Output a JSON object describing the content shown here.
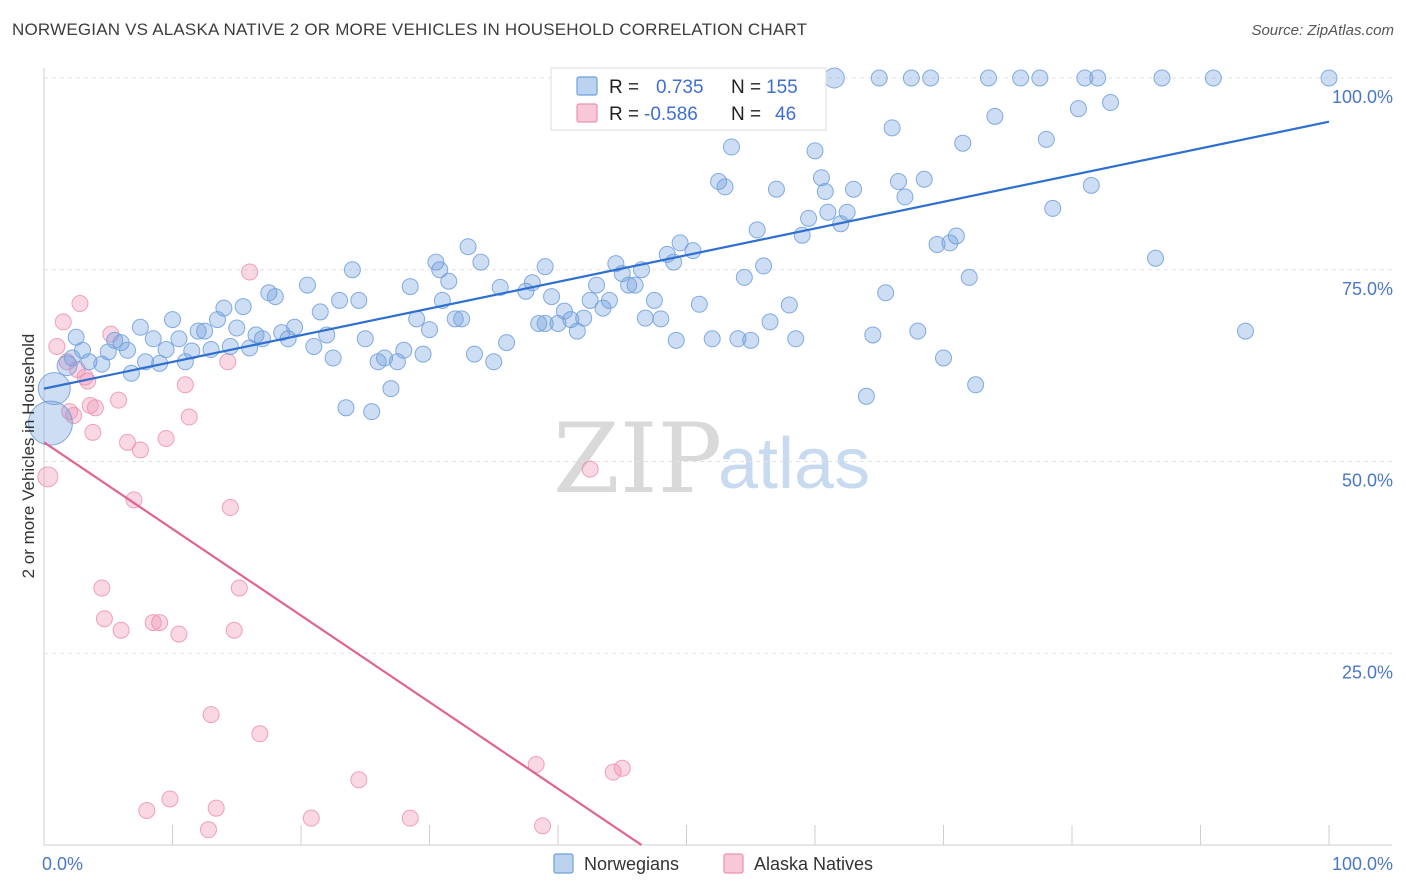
{
  "title": "NORWEGIAN VS ALASKA NATIVE 2 OR MORE VEHICLES IN HOUSEHOLD CORRELATION CHART",
  "source": "Source: ZipAtlas.com",
  "watermark": {
    "zip": "ZIP",
    "atlas": "atlas"
  },
  "colors": {
    "norwegians": "#6f9fdc",
    "alaska": "#ee90b2",
    "norwegians_line": "#2e6fcf",
    "alaska_line": "#e0648f",
    "tick": "#4a78c4"
  },
  "chart_data": {
    "type": "scatter",
    "title": "NORWEGIAN VS ALASKA NATIVE 2 OR MORE VEHICLES IN HOUSEHOLD CORRELATION CHART",
    "xlabel": "",
    "ylabel": "2 or more Vehicles in Household",
    "xlim": [
      0,
      100
    ],
    "ylim": [
      0,
      100
    ],
    "x_ticks": [
      "0.0%",
      "100.0%"
    ],
    "y_ticks": [
      {
        "value": 25,
        "label": "25.0%"
      },
      {
        "value": 50,
        "label": "50.0%"
      },
      {
        "value": 75,
        "label": "75.0%"
      },
      {
        "value": 100,
        "label": "100.0%"
      }
    ],
    "grid": true,
    "legend_placement": "top-center",
    "legend": [
      {
        "r_label": "R =",
        "r_value": "0.735",
        "n_label": "N =",
        "n_value": "155"
      },
      {
        "r_label": "R =",
        "r_value": "-0.586",
        "n_label": "N =",
        "n_value": "46"
      }
    ],
    "series": [
      {
        "name": "Norwegians",
        "trend": {
          "x": [
            0,
            100
          ],
          "y": [
            59.5,
            94.3
          ]
        },
        "points": [
          [
            0.5,
            55.0,
            22
          ],
          [
            0.8,
            59.5,
            16
          ],
          [
            1.8,
            62.5,
            10
          ],
          [
            2.2,
            63.5,
            8
          ],
          [
            2.5,
            66.2,
            8
          ],
          [
            3.0,
            64.5,
            8
          ],
          [
            3.5,
            63.0,
            8
          ],
          [
            4.5,
            62.7,
            8
          ],
          [
            5.0,
            64.3,
            8
          ],
          [
            5.5,
            65.8,
            8
          ],
          [
            6.0,
            65.5,
            8
          ],
          [
            6.5,
            64.5,
            8
          ],
          [
            6.8,
            61.5,
            8
          ],
          [
            7.5,
            67.5,
            8
          ],
          [
            7.9,
            63.0,
            8
          ],
          [
            8.5,
            66.0,
            8
          ],
          [
            9.0,
            62.8,
            8
          ],
          [
            9.5,
            64.6,
            8
          ],
          [
            10.0,
            68.5,
            8
          ],
          [
            10.5,
            66.0,
            8
          ],
          [
            11.0,
            63.0,
            8
          ],
          [
            11.5,
            64.4,
            8
          ],
          [
            12.0,
            67.0,
            8
          ],
          [
            12.5,
            67.0,
            8
          ],
          [
            13.0,
            64.6,
            8
          ],
          [
            13.5,
            68.5,
            8
          ],
          [
            14.0,
            70.0,
            8
          ],
          [
            14.5,
            65.0,
            8
          ],
          [
            15.0,
            67.4,
            8
          ],
          [
            15.5,
            70.2,
            8
          ],
          [
            16.0,
            64.8,
            8
          ],
          [
            16.5,
            66.5,
            8
          ],
          [
            17.0,
            66.0,
            8
          ],
          [
            17.5,
            72.0,
            8
          ],
          [
            18.0,
            71.5,
            8
          ],
          [
            18.5,
            66.8,
            8
          ],
          [
            19.0,
            66.0,
            8
          ],
          [
            19.5,
            67.5,
            8
          ],
          [
            20.5,
            73.0,
            8
          ],
          [
            21.0,
            65.0,
            8
          ],
          [
            21.5,
            69.5,
            8
          ],
          [
            22.0,
            66.5,
            8
          ],
          [
            22.5,
            63.5,
            8
          ],
          [
            23.0,
            71.0,
            8
          ],
          [
            23.5,
            57.0,
            8
          ],
          [
            24.0,
            75.0,
            8
          ],
          [
            24.5,
            71.0,
            8
          ],
          [
            25.0,
            66.0,
            8
          ],
          [
            25.5,
            56.5,
            8
          ],
          [
            26.0,
            63.0,
            8
          ],
          [
            26.5,
            63.5,
            8
          ],
          [
            27.0,
            59.5,
            8
          ],
          [
            27.5,
            63.0,
            8
          ],
          [
            28.0,
            64.5,
            8
          ],
          [
            28.5,
            72.8,
            8
          ],
          [
            29.0,
            68.6,
            8
          ],
          [
            29.5,
            64.0,
            8
          ],
          [
            30.0,
            67.2,
            8
          ],
          [
            31.0,
            71.0,
            8
          ],
          [
            31.5,
            73.5,
            8
          ],
          [
            32.0,
            68.6,
            8
          ],
          [
            32.5,
            68.6,
            8
          ],
          [
            30.8,
            75.0,
            8
          ],
          [
            30.5,
            76.0,
            8
          ],
          [
            33.0,
            78.0,
            8
          ],
          [
            33.5,
            64.0,
            8
          ],
          [
            34.0,
            76.0,
            8
          ],
          [
            35.0,
            63.0,
            8
          ],
          [
            35.5,
            72.7,
            8
          ],
          [
            36.0,
            65.5,
            8
          ],
          [
            37.5,
            72.2,
            8
          ],
          [
            38.0,
            73.3,
            8
          ],
          [
            38.5,
            68.0,
            8
          ],
          [
            39.0,
            75.4,
            8
          ],
          [
            39.0,
            68.0,
            8
          ],
          [
            39.5,
            71.5,
            8
          ],
          [
            40.0,
            68.0,
            8
          ],
          [
            40.5,
            69.6,
            8
          ],
          [
            41.0,
            68.5,
            8
          ],
          [
            41.5,
            67.0,
            8
          ],
          [
            42.0,
            68.7,
            8
          ],
          [
            42.5,
            71.0,
            8
          ],
          [
            43.0,
            73.0,
            8
          ],
          [
            43.5,
            70.0,
            8
          ],
          [
            44.0,
            71.0,
            8
          ],
          [
            44.5,
            75.8,
            8
          ],
          [
            45.0,
            74.5,
            8
          ],
          [
            45.5,
            73.0,
            8
          ],
          [
            46.0,
            73.0,
            8
          ],
          [
            46.5,
            75.0,
            8
          ],
          [
            46.8,
            68.7,
            8
          ],
          [
            47.5,
            71.0,
            8
          ],
          [
            48.0,
            68.6,
            8
          ],
          [
            48.5,
            77.0,
            8
          ],
          [
            49.0,
            76.0,
            8
          ],
          [
            49.5,
            78.5,
            8
          ],
          [
            50.5,
            77.5,
            8
          ],
          [
            49.2,
            65.8,
            8
          ],
          [
            51.0,
            70.5,
            8
          ],
          [
            52.0,
            66.0,
            8
          ],
          [
            52.5,
            86.5,
            8
          ],
          [
            53.0,
            85.8,
            8
          ],
          [
            53.5,
            91.0,
            8
          ],
          [
            54.0,
            66.0,
            8
          ],
          [
            54.5,
            74.0,
            8
          ],
          [
            55.0,
            65.8,
            8
          ],
          [
            55.5,
            80.2,
            8
          ],
          [
            56.0,
            75.5,
            8
          ],
          [
            56.5,
            68.2,
            8
          ],
          [
            57.0,
            85.5,
            8
          ],
          [
            58.0,
            70.4,
            8
          ],
          [
            58.5,
            66.0,
            8
          ],
          [
            59.0,
            79.5,
            8
          ],
          [
            59.5,
            81.7,
            8
          ],
          [
            60.0,
            90.5,
            8
          ],
          [
            60.5,
            87.0,
            8
          ],
          [
            60.8,
            85.2,
            8
          ],
          [
            61.0,
            82.5,
            8
          ],
          [
            61.5,
            100.0,
            10
          ],
          [
            62.0,
            81.0,
            8
          ],
          [
            62.5,
            82.5,
            8
          ],
          [
            63.0,
            85.5,
            8
          ],
          [
            64.0,
            58.5,
            8
          ],
          [
            64.5,
            66.5,
            8
          ],
          [
            65.0,
            100.0,
            8
          ],
          [
            65.5,
            72.0,
            8
          ],
          [
            66.0,
            93.5,
            8
          ],
          [
            66.5,
            86.5,
            8
          ],
          [
            67.0,
            84.5,
            8
          ],
          [
            67.5,
            100.0,
            8
          ],
          [
            68.0,
            67.0,
            8
          ],
          [
            68.5,
            86.8,
            8
          ],
          [
            69.0,
            100.0,
            8
          ],
          [
            69.5,
            78.3,
            8
          ],
          [
            70.0,
            63.5,
            8
          ],
          [
            70.5,
            78.5,
            8
          ],
          [
            71.0,
            79.4,
            8
          ],
          [
            71.5,
            91.5,
            8
          ],
          [
            72.0,
            74.0,
            8
          ],
          [
            72.5,
            60.0,
            8
          ],
          [
            73.5,
            100.0,
            8
          ],
          [
            74.0,
            95.0,
            8
          ],
          [
            76.0,
            100.0,
            8
          ],
          [
            78.0,
            92.0,
            8
          ],
          [
            77.5,
            100.0,
            8
          ],
          [
            78.5,
            83.0,
            8
          ],
          [
            80.5,
            96.0,
            8
          ],
          [
            81.0,
            100.0,
            8
          ],
          [
            81.5,
            86.0,
            8
          ],
          [
            82.0,
            100.0,
            8
          ],
          [
            83.0,
            96.8,
            8
          ],
          [
            86.5,
            76.5,
            8
          ],
          [
            87.0,
            100.0,
            8
          ],
          [
            91.0,
            100.0,
            8
          ],
          [
            93.5,
            67.0,
            8
          ],
          [
            100.0,
            100.0,
            8
          ]
        ]
      },
      {
        "name": "Alaska Natives",
        "trend": {
          "x": [
            0,
            46.5
          ],
          "y": [
            52.5,
            0
          ]
        },
        "points": [
          [
            0.3,
            48.0,
            10
          ],
          [
            1.0,
            65.0,
            8
          ],
          [
            1.5,
            68.2,
            8
          ],
          [
            1.8,
            63.0,
            8
          ],
          [
            2.0,
            56.5,
            8
          ],
          [
            2.3,
            56.0,
            8
          ],
          [
            2.6,
            62.0,
            8
          ],
          [
            2.8,
            70.6,
            8
          ],
          [
            3.2,
            61.0,
            8
          ],
          [
            3.4,
            60.5,
            8
          ],
          [
            3.6,
            57.3,
            8
          ],
          [
            3.8,
            53.8,
            8
          ],
          [
            4.0,
            57.0,
            8
          ],
          [
            4.5,
            33.5,
            8
          ],
          [
            4.7,
            29.5,
            8
          ],
          [
            5.2,
            66.6,
            8
          ],
          [
            5.8,
            58.0,
            8
          ],
          [
            6.0,
            28.0,
            8
          ],
          [
            6.5,
            52.5,
            8
          ],
          [
            7.0,
            45.0,
            8
          ],
          [
            7.5,
            51.5,
            8
          ],
          [
            8.0,
            4.5,
            8
          ],
          [
            8.5,
            29.0,
            8
          ],
          [
            9.0,
            29.0,
            8
          ],
          [
            9.5,
            53.0,
            8
          ],
          [
            9.8,
            6.0,
            8
          ],
          [
            10.5,
            27.5,
            8
          ],
          [
            11.0,
            60.0,
            8
          ],
          [
            11.3,
            55.8,
            8
          ],
          [
            12.8,
            2.0,
            8
          ],
          [
            13.0,
            17.0,
            8
          ],
          [
            13.4,
            4.8,
            8
          ],
          [
            14.3,
            63.0,
            8
          ],
          [
            14.5,
            44.0,
            8
          ],
          [
            14.8,
            28.0,
            8
          ],
          [
            15.2,
            33.5,
            8
          ],
          [
            16.0,
            74.7,
            8
          ],
          [
            16.8,
            14.5,
            8
          ],
          [
            20.8,
            3.5,
            8
          ],
          [
            24.5,
            8.5,
            8
          ],
          [
            28.5,
            3.5,
            8
          ],
          [
            38.3,
            10.5,
            8
          ],
          [
            38.8,
            2.5,
            8
          ],
          [
            42.5,
            49.0,
            8
          ],
          [
            44.3,
            9.5,
            8
          ],
          [
            45.0,
            10.0,
            8
          ]
        ]
      }
    ]
  }
}
